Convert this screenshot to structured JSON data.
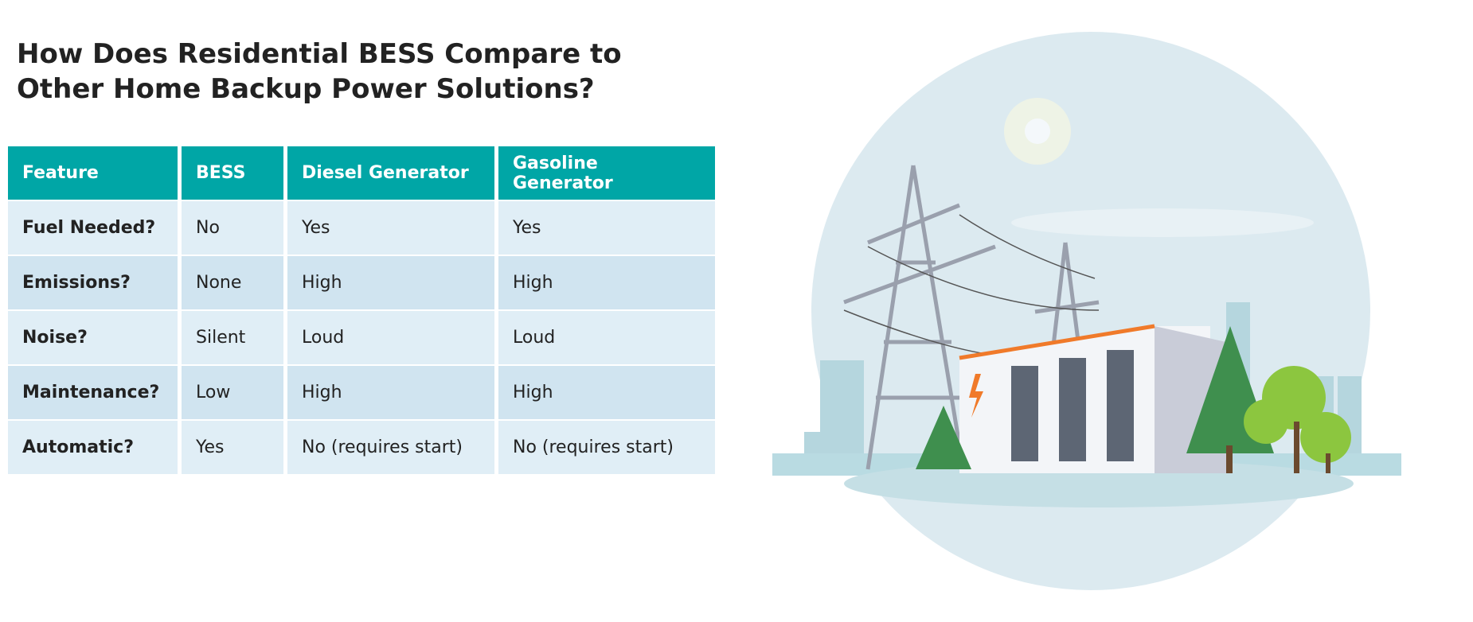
{
  "header": {
    "title": "How Does Residential BESS Compare to Other Home Backup Power Solutions?"
  },
  "table": {
    "columns": [
      "Feature",
      "BESS",
      "Diesel Generator",
      "Gasoline Generator"
    ],
    "rows": [
      [
        "Fuel Needed?",
        "No",
        "Yes",
        "Yes"
      ],
      [
        "Emissions?",
        "None",
        "High",
        "High"
      ],
      [
        "Noise?",
        "Silent",
        "Loud",
        "Loud"
      ],
      [
        "Maintenance?",
        "Low",
        "High",
        "High"
      ],
      [
        "Automatic?",
        "Yes",
        "No (requires start)",
        "No (requires start)"
      ]
    ]
  }
}
